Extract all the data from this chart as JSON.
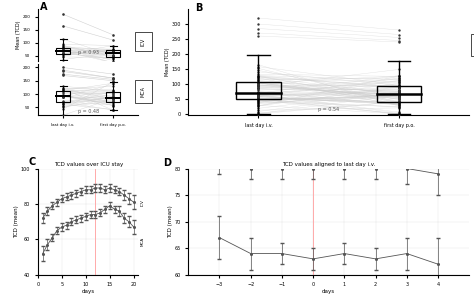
{
  "fig_width": 4.74,
  "fig_height": 3.02,
  "bg_color": "#ffffff",
  "panel_C": {
    "title": "TCD values over ICU stay",
    "xlabel": "days",
    "ylabel": "TCD (mean)",
    "vline_x": 12,
    "days": [
      1,
      2,
      3,
      4,
      5,
      6,
      7,
      8,
      9,
      10,
      11,
      12,
      13,
      14,
      15,
      16,
      17,
      18,
      19,
      20
    ],
    "ICV_mean": [
      52,
      57,
      61,
      65,
      67,
      68,
      70,
      71,
      72,
      73,
      74,
      74,
      75,
      77,
      79,
      77,
      76,
      72,
      70,
      67
    ],
    "ICV_err": [
      4,
      3,
      2,
      2,
      2,
      2,
      2,
      2,
      2,
      2,
      2,
      2,
      2,
      2,
      2,
      2,
      3,
      3,
      3,
      4
    ],
    "MCA_mean": [
      72,
      76,
      79,
      81,
      83,
      84,
      85,
      86,
      87,
      88,
      88,
      89,
      89,
      88,
      89,
      88,
      87,
      85,
      83,
      81
    ],
    "MCA_err": [
      3,
      2,
      2,
      2,
      2,
      2,
      2,
      2,
      2,
      2,
      2,
      2,
      2,
      2,
      2,
      2,
      2,
      3,
      3,
      4
    ],
    "line_color": "#555555",
    "vline_color": "#ffaaaa",
    "ylim": [
      40,
      100
    ],
    "yticks": [
      40,
      60,
      80,
      100
    ],
    "xticks": [
      0,
      5,
      10,
      15,
      20
    ]
  },
  "panel_D": {
    "title": "TCD values aligned to last day i.v.",
    "xlabel": "days",
    "ylabel": "TCD (mean)",
    "ylim": [
      60,
      80
    ],
    "yticks": [
      60,
      65,
      70,
      75,
      80
    ],
    "vline_x": 0,
    "days": [
      -3,
      -2,
      -1,
      0,
      1,
      2,
      3,
      4
    ],
    "ICV_mean": [
      67,
      64,
      64,
      63,
      64,
      63,
      64,
      62
    ],
    "ICV_err": [
      4,
      3,
      2,
      2,
      2,
      2,
      3,
      5
    ],
    "MCA_mean": [
      82,
      80,
      80,
      80,
      80,
      80,
      80,
      79
    ],
    "MCA_err": [
      3,
      2,
      2,
      2,
      2,
      2,
      3,
      4
    ],
    "line_color": "#555555",
    "vline_color": "#ffaaaa",
    "xticks": [
      -3,
      -2,
      -1,
      0,
      1,
      2,
      3,
      4
    ]
  }
}
